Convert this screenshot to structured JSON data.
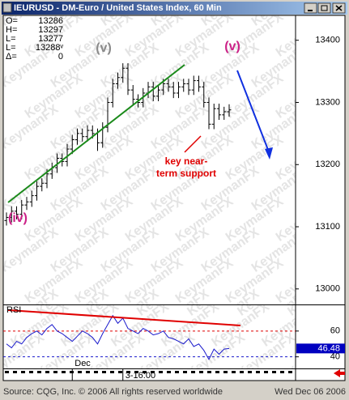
{
  "window_title": "IEURUSD - DM-Euro / United States Index, 60 Min",
  "watermark": "KeymanFX",
  "info": [
    {
      "label": "O=",
      "value": "13286"
    },
    {
      "label": "H=",
      "value": "13297"
    },
    {
      "label": "L=",
      "value": "13277"
    },
    {
      "label": "L=",
      "value": "13288ᵛ"
    },
    {
      "label": "Δ=",
      "value": "0"
    }
  ],
  "footer_left": "Source: CQG, Inc. © 2006 All rights reserved worldwide",
  "footer_right": "Wed Dec 06 2006",
  "chart_data": [
    {
      "type": "ohlc",
      "color": "#000000",
      "annotations": [
        "(v)",
        "(v)",
        "(iv)",
        "key near-",
        "term support"
      ],
      "xtick_labels": [
        {
          "index": 13,
          "label": "Dec"
        },
        {
          "index": 23,
          "label": "3-16:00"
        }
      ],
      "ylim": [
        12975,
        13440
      ],
      "yticks": [
        13000,
        13100,
        13200,
        13300,
        13400
      ],
      "open": [
        13110,
        13115,
        13125,
        13120,
        13135,
        13140,
        13150,
        13165,
        13170,
        13185,
        13195,
        13210,
        13205,
        13225,
        13240,
        13250,
        13245,
        13255,
        13250,
        13235,
        13260,
        13300,
        13330,
        13340,
        13355,
        13320,
        13305,
        13300,
        13315,
        13325,
        13310,
        13320,
        13330,
        13325,
        13315,
        13325,
        13330,
        13320,
        13335,
        13325,
        13300,
        13265,
        13290,
        13280,
        13285
      ],
      "high": [
        13123,
        13133,
        13133,
        13143,
        13148,
        13158,
        13173,
        13178,
        13193,
        13203,
        13218,
        13218,
        13233,
        13248,
        13258,
        13258,
        13263,
        13263,
        13258,
        13268,
        13308,
        13338,
        13348,
        13363,
        13363,
        13328,
        13313,
        13323,
        13333,
        13333,
        13328,
        13338,
        13338,
        13333,
        13333,
        13338,
        13338,
        13343,
        13343,
        13333,
        13308,
        13298,
        13298,
        13293,
        13297
      ],
      "low": [
        13102,
        13107,
        13112,
        13112,
        13127,
        13132,
        13142,
        13157,
        13162,
        13177,
        13187,
        13197,
        13197,
        13217,
        13232,
        13237,
        13237,
        13242,
        13222,
        13227,
        13252,
        13292,
        13322,
        13332,
        13312,
        13297,
        13292,
        13292,
        13307,
        13302,
        13302,
        13312,
        13317,
        13307,
        13307,
        13317,
        13312,
        13312,
        13317,
        13292,
        13257,
        13257,
        13272,
        13272,
        13277
      ],
      "close": [
        13115,
        13125,
        13120,
        13135,
        13140,
        13150,
        13165,
        13170,
        13185,
        13195,
        13210,
        13205,
        13225,
        13240,
        13250,
        13245,
        13255,
        13250,
        13235,
        13260,
        13300,
        13330,
        13340,
        13355,
        13320,
        13305,
        13300,
        13315,
        13325,
        13310,
        13320,
        13330,
        13325,
        13315,
        13325,
        13330,
        13320,
        13335,
        13325,
        13300,
        13265,
        13290,
        13280,
        13285,
        13288
      ]
    },
    {
      "type": "line",
      "title": "RSI",
      "color": "#1a1acc",
      "values": [
        50,
        47,
        52,
        50,
        55,
        58,
        60,
        57,
        62,
        65,
        60,
        58,
        55,
        52,
        56,
        60,
        58,
        55,
        50,
        58,
        65,
        72,
        66,
        70,
        62,
        60,
        58,
        62,
        60,
        57,
        58,
        60,
        55,
        54,
        52,
        50,
        54,
        48,
        50,
        45,
        38,
        46,
        42,
        46,
        46.48
      ],
      "last_label": "46.48",
      "ylim": [
        31,
        80
      ],
      "yticks": [
        40,
        60
      ]
    }
  ]
}
